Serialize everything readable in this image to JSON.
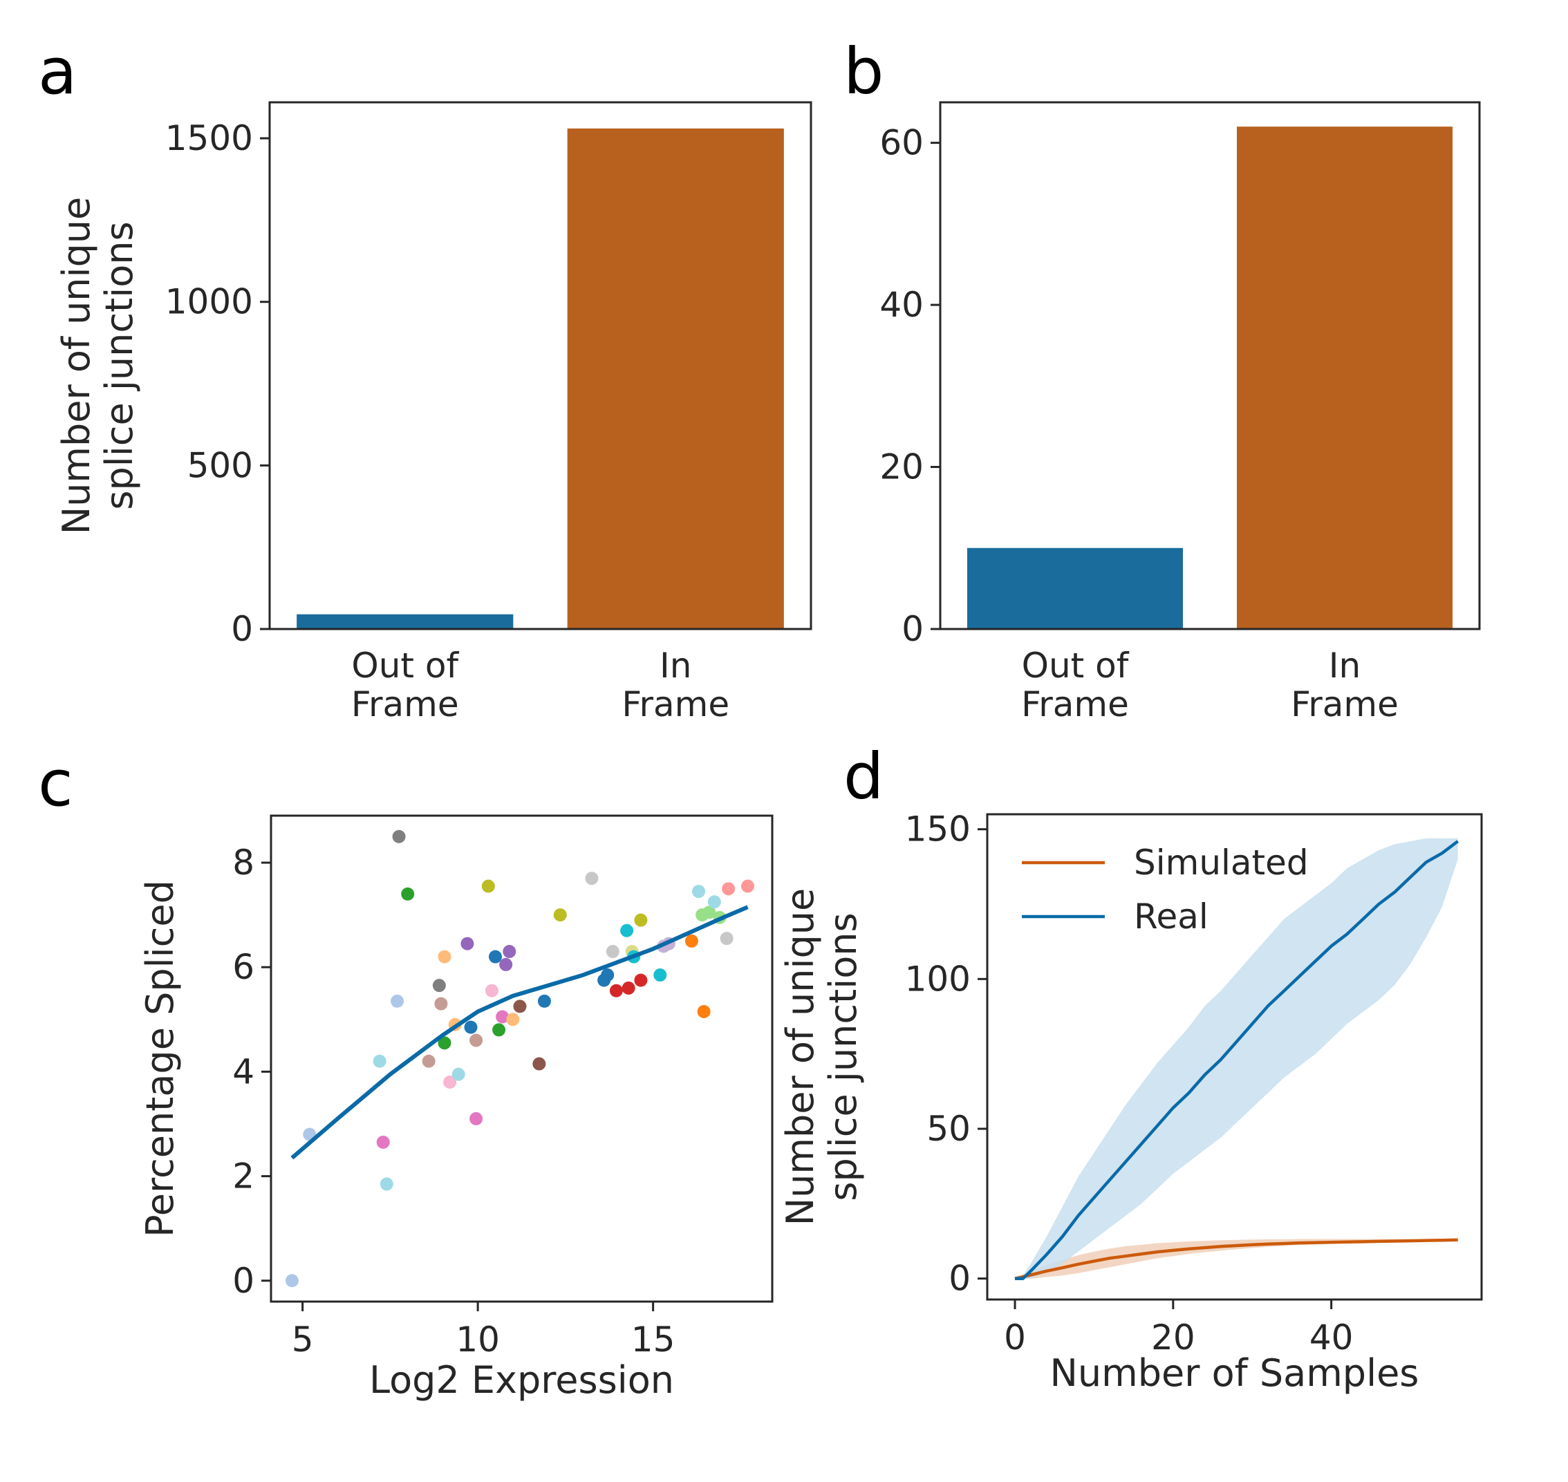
{
  "chart_data": [
    {
      "panel": "a",
      "type": "bar",
      "categories": [
        [
          "Out of",
          "Frame"
        ],
        [
          "In",
          "Frame"
        ]
      ],
      "values": [
        45,
        1530
      ],
      "colors": [
        "#1a6c9d",
        "#b8611f"
      ],
      "ylabel": [
        "Number of unique",
        "splice junctions"
      ],
      "xlabel": "",
      "ylim": [
        0,
        1610
      ],
      "yticks": [
        0,
        500,
        1000,
        1500
      ],
      "grid": false
    },
    {
      "panel": "b",
      "type": "bar",
      "categories": [
        [
          "Out of",
          "Frame"
        ],
        [
          "In",
          "Frame"
        ]
      ],
      "values": [
        10,
        62
      ],
      "colors": [
        "#1a6c9d",
        "#b8611f"
      ],
      "ylabel": [],
      "xlabel": "",
      "ylim": [
        0,
        65
      ],
      "yticks": [
        0,
        20,
        40,
        60
      ],
      "grid": false
    },
    {
      "panel": "c",
      "type": "scatter",
      "xlabel": "Log2 Expression",
      "ylabel": "Percentage Spliced",
      "xlim": [
        4.1,
        18.4
      ],
      "ylim": [
        -0.4,
        8.9
      ],
      "xticks": [
        5,
        10,
        15
      ],
      "yticks": [
        0,
        2,
        4,
        6,
        8
      ],
      "points": [
        {
          "x": 4.7,
          "y": 0.0,
          "color": "#aec7e8"
        },
        {
          "x": 5.2,
          "y": 2.8,
          "color": "#aec7e8"
        },
        {
          "x": 7.2,
          "y": 4.2,
          "color": "#9edae5"
        },
        {
          "x": 7.3,
          "y": 2.65,
          "color": "#e377c2"
        },
        {
          "x": 7.4,
          "y": 1.85,
          "color": "#9edae5"
        },
        {
          "x": 7.7,
          "y": 5.35,
          "color": "#aec7e8"
        },
        {
          "x": 7.75,
          "y": 8.5,
          "color": "#7f7f7f"
        },
        {
          "x": 8.0,
          "y": 7.4,
          "color": "#2ca02c"
        },
        {
          "x": 8.6,
          "y": 4.2,
          "color": "#c49c94"
        },
        {
          "x": 8.9,
          "y": 5.65,
          "color": "#7f7f7f"
        },
        {
          "x": 8.95,
          "y": 5.3,
          "color": "#c49c94"
        },
        {
          "x": 9.05,
          "y": 6.2,
          "color": "#ffbb78"
        },
        {
          "x": 9.05,
          "y": 4.55,
          "color": "#2ca02c"
        },
        {
          "x": 9.2,
          "y": 3.8,
          "color": "#f7b6d2"
        },
        {
          "x": 9.35,
          "y": 4.9,
          "color": "#ffbb78"
        },
        {
          "x": 9.45,
          "y": 3.95,
          "color": "#9edae5"
        },
        {
          "x": 9.7,
          "y": 6.45,
          "color": "#9467bd"
        },
        {
          "x": 9.8,
          "y": 4.85,
          "color": "#1f77b4"
        },
        {
          "x": 9.95,
          "y": 4.6,
          "color": "#c49c94"
        },
        {
          "x": 9.95,
          "y": 3.1,
          "color": "#e377c2"
        },
        {
          "x": 10.3,
          "y": 7.55,
          "color": "#bcbd22"
        },
        {
          "x": 10.4,
          "y": 5.55,
          "color": "#f7b6d2"
        },
        {
          "x": 10.5,
          "y": 6.2,
          "color": "#1f77b4"
        },
        {
          "x": 10.6,
          "y": 4.8,
          "color": "#2ca02c"
        },
        {
          "x": 10.7,
          "y": 5.05,
          "color": "#e377c2"
        },
        {
          "x": 10.8,
          "y": 6.05,
          "color": "#9467bd"
        },
        {
          "x": 10.9,
          "y": 6.3,
          "color": "#9467bd"
        },
        {
          "x": 11.0,
          "y": 5.0,
          "color": "#ffbb78"
        },
        {
          "x": 11.2,
          "y": 5.25,
          "color": "#8c564b"
        },
        {
          "x": 11.75,
          "y": 4.15,
          "color": "#8c564b"
        },
        {
          "x": 11.9,
          "y": 5.35,
          "color": "#1f77b4"
        },
        {
          "x": 12.35,
          "y": 7.0,
          "color": "#bcbd22"
        },
        {
          "x": 13.25,
          "y": 7.7,
          "color": "#c7c7c7"
        },
        {
          "x": 13.6,
          "y": 5.75,
          "color": "#1f77b4"
        },
        {
          "x": 13.7,
          "y": 5.85,
          "color": "#1f77b4"
        },
        {
          "x": 13.85,
          "y": 6.3,
          "color": "#c7c7c7"
        },
        {
          "x": 13.95,
          "y": 5.55,
          "color": "#d62728"
        },
        {
          "x": 14.25,
          "y": 6.7,
          "color": "#17becf"
        },
        {
          "x": 14.3,
          "y": 5.6,
          "color": "#d62728"
        },
        {
          "x": 14.4,
          "y": 6.3,
          "color": "#dbdb8d"
        },
        {
          "x": 14.45,
          "y": 6.2,
          "color": "#17becf"
        },
        {
          "x": 14.65,
          "y": 6.9,
          "color": "#bcbd22"
        },
        {
          "x": 14.65,
          "y": 5.75,
          "color": "#d62728"
        },
        {
          "x": 15.2,
          "y": 5.85,
          "color": "#17becf"
        },
        {
          "x": 15.3,
          "y": 6.4,
          "color": "#c5b0d5"
        },
        {
          "x": 15.45,
          "y": 6.45,
          "color": "#c5b0d5"
        },
        {
          "x": 16.1,
          "y": 6.5,
          "color": "#ff7f0e"
        },
        {
          "x": 16.3,
          "y": 7.45,
          "color": "#9edae5"
        },
        {
          "x": 16.4,
          "y": 7.0,
          "color": "#98df8a"
        },
        {
          "x": 16.45,
          "y": 5.15,
          "color": "#ff7f0e"
        },
        {
          "x": 16.6,
          "y": 7.05,
          "color": "#98df8a"
        },
        {
          "x": 16.75,
          "y": 7.25,
          "color": "#9edae5"
        },
        {
          "x": 16.9,
          "y": 6.95,
          "color": "#98df8a"
        },
        {
          "x": 17.1,
          "y": 6.55,
          "color": "#c7c7c7"
        },
        {
          "x": 17.15,
          "y": 7.5,
          "color": "#ff9896"
        },
        {
          "x": 17.7,
          "y": 7.55,
          "color": "#ff9896"
        }
      ],
      "trend": {
        "color": "#0a6aa8",
        "x": [
          4.7,
          6.0,
          7.5,
          9.0,
          10.0,
          11.0,
          12.0,
          13.0,
          14.0,
          15.0,
          16.0,
          17.0,
          17.7
        ],
        "y": [
          2.35,
          3.1,
          3.95,
          4.7,
          5.15,
          5.45,
          5.65,
          5.85,
          6.1,
          6.35,
          6.65,
          6.95,
          7.15
        ]
      }
    },
    {
      "panel": "d",
      "type": "line",
      "xlabel": "Number of Samples",
      "ylabel": [
        "Number of unique",
        "splice junctions"
      ],
      "xlim": [
        -3.5,
        59
      ],
      "ylim": [
        -7,
        155
      ],
      "xticks": [
        0,
        20,
        40
      ],
      "yticks": [
        0,
        50,
        100,
        150
      ],
      "legend": "top-left",
      "series": [
        {
          "name": "Simulated",
          "color": "#cc5a0a",
          "band_color": "#f0cfb8",
          "x": [
            0,
            2,
            4,
            6,
            8,
            10,
            12,
            14,
            16,
            18,
            20,
            22,
            24,
            26,
            28,
            30,
            32,
            34,
            36,
            38,
            40,
            42,
            44,
            46,
            48,
            50,
            52,
            54,
            56
          ],
          "y": [
            0,
            1.2,
            2.5,
            3.6,
            4.8,
            5.8,
            6.8,
            7.5,
            8.2,
            8.9,
            9.4,
            9.9,
            10.3,
            10.7,
            11.0,
            11.3,
            11.5,
            11.7,
            11.9,
            12.0,
            12.1,
            12.2,
            12.3,
            12.4,
            12.5,
            12.6,
            12.7,
            12.8,
            12.9
          ],
          "lower": [
            0,
            0,
            0.5,
            1.0,
            1.8,
            2.8,
            3.8,
            4.8,
            5.8,
            6.8,
            7.5,
            8.2,
            8.8,
            9.3,
            9.8,
            10.2,
            10.6,
            10.9,
            11.2,
            11.4,
            11.6,
            11.8,
            12.0,
            12.2,
            12.3,
            12.4,
            12.5,
            12.6,
            12.7
          ],
          "upper": [
            0,
            2.5,
            4.5,
            6.2,
            7.8,
            9.0,
            10.0,
            10.8,
            11.3,
            11.8,
            12.1,
            12.4,
            12.6,
            12.8,
            12.9,
            13.0,
            13.1,
            13.1,
            13.2,
            13.2,
            13.2,
            13.2,
            13.2,
            13.2,
            13.2,
            13.2,
            13.2,
            13.2,
            13.2
          ]
        },
        {
          "name": "Real",
          "color": "#0a6aa8",
          "band_color": "#c8dfee",
          "x": [
            0,
            1,
            2,
            4,
            6,
            8,
            10,
            12,
            14,
            16,
            18,
            20,
            22,
            24,
            26,
            28,
            30,
            32,
            34,
            36,
            38,
            40,
            42,
            44,
            46,
            48,
            50,
            52,
            54,
            56
          ],
          "y": [
            0,
            0,
            2.5,
            8,
            14,
            21,
            27,
            33,
            39,
            45,
            51,
            57,
            62,
            68,
            73,
            79,
            85,
            91,
            96,
            101,
            106,
            111,
            115,
            120,
            125,
            129,
            134,
            139,
            142,
            146
          ],
          "lower": [
            0,
            0,
            0,
            2,
            5,
            9,
            13,
            17,
            21,
            25,
            30,
            35,
            39,
            43,
            47,
            52,
            57,
            62,
            67,
            71,
            75,
            80,
            85,
            89,
            93,
            98,
            105,
            114,
            124,
            140
          ],
          "upper": [
            0,
            1,
            5,
            14,
            24,
            34,
            42,
            50,
            58,
            65,
            72,
            78,
            84,
            91,
            96,
            102,
            108,
            114,
            120,
            124,
            128,
            132,
            137,
            140,
            143,
            145,
            146,
            147,
            147,
            147
          ]
        }
      ]
    }
  ],
  "panel_letters": [
    "a",
    "b",
    "c",
    "d"
  ]
}
